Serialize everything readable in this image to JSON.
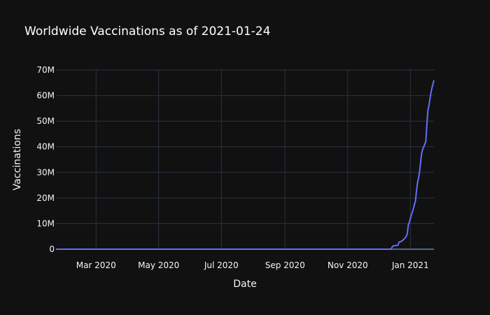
{
  "chart_data": {
    "type": "line",
    "title": "Worldwide Vaccinations as of 2021-01-24",
    "xlabel": "Date",
    "ylabel": "Vaccinations",
    "xlim": [
      "2020-01-22",
      "2021-01-24"
    ],
    "ylim": [
      0,
      70000000
    ],
    "x_ticks": [
      {
        "date": "2020-03-01",
        "label": "Mar 2020"
      },
      {
        "date": "2020-05-01",
        "label": "May 2020"
      },
      {
        "date": "2020-07-01",
        "label": "Jul 2020"
      },
      {
        "date": "2020-09-01",
        "label": "Sep 2020"
      },
      {
        "date": "2020-11-01",
        "label": "Nov 2020"
      },
      {
        "date": "2021-01-01",
        "label": "Jan 2021"
      }
    ],
    "y_ticks": [
      {
        "value": 0,
        "label": "0"
      },
      {
        "value": 10000000,
        "label": "10M"
      },
      {
        "value": 20000000,
        "label": "20M"
      },
      {
        "value": 30000000,
        "label": "30M"
      },
      {
        "value": 40000000,
        "label": "40M"
      },
      {
        "value": 50000000,
        "label": "50M"
      },
      {
        "value": 60000000,
        "label": "60M"
      },
      {
        "value": 70000000,
        "label": "70M"
      }
    ],
    "grid": true,
    "series": [
      {
        "color": "#636efa",
        "x": [
          "2020-01-22",
          "2020-12-13",
          "2020-12-15",
          "2020-12-16",
          "2020-12-18",
          "2020-12-20",
          "2020-12-21",
          "2020-12-23",
          "2020-12-24",
          "2020-12-25",
          "2020-12-27",
          "2020-12-28",
          "2020-12-29",
          "2020-12-30",
          "2020-12-31",
          "2021-01-01",
          "2021-01-02",
          "2021-01-03",
          "2021-01-04",
          "2021-01-05",
          "2021-01-06",
          "2021-01-07",
          "2021-01-08",
          "2021-01-09",
          "2021-01-10",
          "2021-01-11",
          "2021-01-12",
          "2021-01-13",
          "2021-01-14",
          "2021-01-15",
          "2021-01-16",
          "2021-01-17",
          "2021-01-18",
          "2021-01-19",
          "2021-01-20",
          "2021-01-21",
          "2021-01-22",
          "2021-01-23",
          "2021-01-24"
        ],
        "y": [
          0,
          0,
          1200000,
          1400000,
          1400000,
          1600000,
          2800000,
          3000000,
          3300000,
          3600000,
          4500000,
          5000000,
          6000000,
          9500000,
          10500000,
          12000000,
          13500000,
          14500000,
          16000000,
          17500000,
          19000000,
          23000000,
          26000000,
          28000000,
          30500000,
          34000000,
          37500000,
          39000000,
          40000000,
          41000000,
          42000000,
          48000000,
          54000000,
          56000000,
          58500000,
          61000000,
          63000000,
          64500000,
          66000000
        ]
      }
    ]
  }
}
